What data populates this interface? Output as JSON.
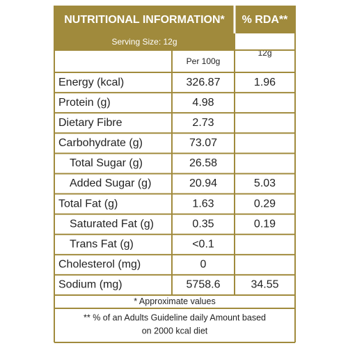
{
  "header": {
    "title": "NUTRITIONAL INFORMATION*",
    "rda_title": "% RDA**",
    "serving_size": "Serving Size:  12g",
    "per_100g": "Per 100g",
    "rda_serving": "12g"
  },
  "rows": [
    {
      "label": "Energy (kcal)",
      "per_100g": "326.87",
      "rda": "1.96"
    },
    {
      "label": "Protein (g)",
      "per_100g": "4.98"
    },
    {
      "label": "Dietary Fibre",
      "per_100g": "2.73"
    },
    {
      "label": "Carbohydrate (g)",
      "per_100g": "73.07"
    },
    {
      "label": "Total Sugar (g)",
      "per_100g": "26.58",
      "indent": true
    },
    {
      "label": "Added Sugar (g)",
      "per_100g": "20.94",
      "rda": "5.03",
      "indent": true
    },
    {
      "label": "Total Fat (g)",
      "per_100g": "1.63",
      "rda": "0.29"
    },
    {
      "label": "Saturated Fat (g)",
      "per_100g": "0.35",
      "rda": "0.19",
      "indent": true
    },
    {
      "label": "Trans Fat (g)",
      "per_100g": "<0.1",
      "indent": true
    },
    {
      "label": "Cholesterol (mg)",
      "per_100g": "0"
    },
    {
      "label": "Sodium (mg)",
      "per_100g": "5758.6",
      "rda": "34.55"
    }
  ],
  "footnotes": {
    "approx": "* Approximate values",
    "rda_note": [
      "** % of an Adults Guideline daily Amount based",
      "on 2000 kcal diet"
    ]
  }
}
